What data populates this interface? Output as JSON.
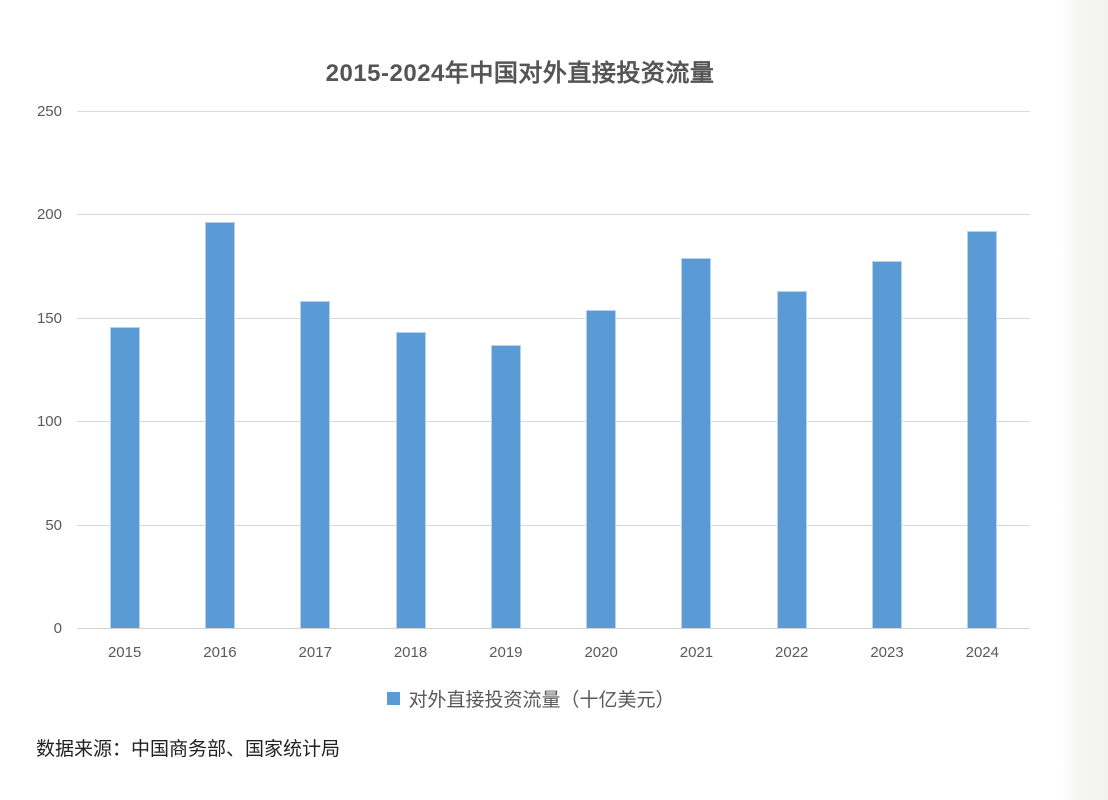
{
  "chart_data": {
    "type": "bar",
    "title": "2015-2024年中国对外直接投资流量",
    "categories": [
      "2015",
      "2016",
      "2017",
      "2018",
      "2019",
      "2020",
      "2021",
      "2022",
      "2023",
      "2024"
    ],
    "series": [
      {
        "name": "对外直接投资流量（十亿美元）",
        "values": [
          145.7,
          196.2,
          158.3,
          143.0,
          136.9,
          153.7,
          178.8,
          163.1,
          177.3,
          192.2
        ]
      }
    ],
    "xlabel": "",
    "ylabel": "",
    "ylim": [
      0,
      250
    ],
    "y_ticks": [
      0,
      50,
      100,
      150,
      200,
      250
    ],
    "grid": true,
    "legend_position": "bottom",
    "bar_color": "#5b9bd5",
    "gridline_color": "#dadada"
  },
  "legend": {
    "label": "对外直接投资流量（十亿美元）"
  },
  "source_note": "数据来源：中国商务部、国家统计局"
}
